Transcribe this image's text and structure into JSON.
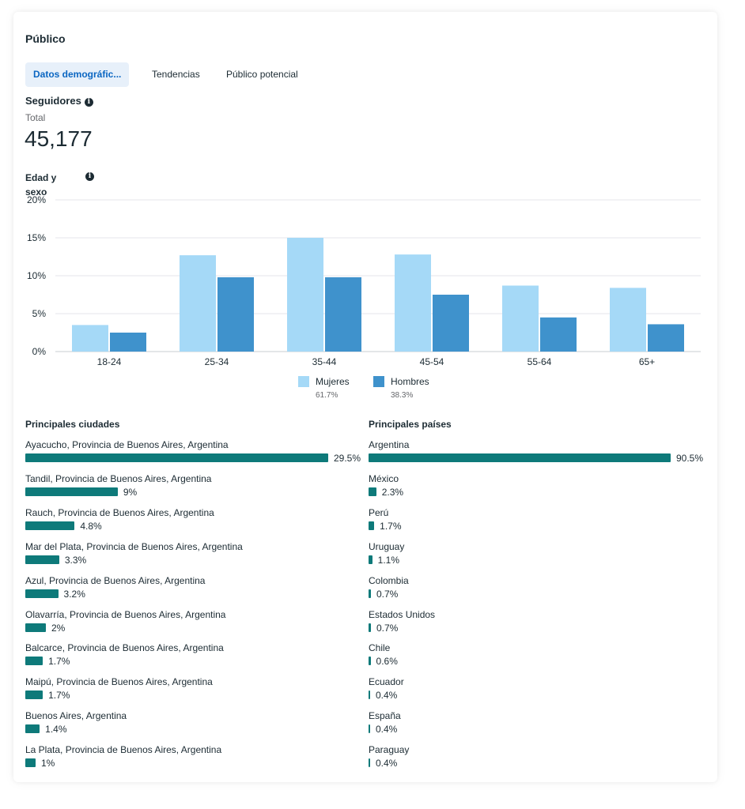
{
  "header": {
    "title": "Público"
  },
  "tabs": [
    {
      "label": "Datos demográfic...",
      "active": true
    },
    {
      "label": "Tendencias",
      "active": false
    },
    {
      "label": "Público potencial",
      "active": false
    }
  ],
  "followers": {
    "heading": "Seguidores",
    "total_label": "Total",
    "total_value": "45,177"
  },
  "chart_data": {
    "type": "bar",
    "title": "Edad y sexo",
    "categories": [
      "18-24",
      "25-34",
      "35-44",
      "45-54",
      "55-64",
      "65+"
    ],
    "series": [
      {
        "name": "Mujeres",
        "color": "#a5d9f7",
        "share": "61.7%",
        "values": [
          3.5,
          12.7,
          15.0,
          12.8,
          8.7,
          8.4
        ]
      },
      {
        "name": "Hombres",
        "color": "#3f92cc",
        "share": "38.3%",
        "values": [
          2.5,
          9.8,
          9.8,
          7.5,
          4.5,
          3.6
        ]
      }
    ],
    "yticks": [
      "0%",
      "5%",
      "10%",
      "15%",
      "20%"
    ],
    "ylim": [
      0,
      20
    ],
    "grid": true,
    "legend": "bottom-center"
  },
  "cities": {
    "title": "Principales ciudades",
    "items": [
      {
        "name": "Ayacucho, Provincia de Buenos Aires, Argentina",
        "pct": "29.5%",
        "value": 29.5
      },
      {
        "name": "Tandil, Provincia de Buenos Aires, Argentina",
        "pct": "9%",
        "value": 9
      },
      {
        "name": "Rauch, Provincia de Buenos Aires, Argentina",
        "pct": "4.8%",
        "value": 4.8
      },
      {
        "name": "Mar del Plata, Provincia de Buenos Aires, Argentina",
        "pct": "3.3%",
        "value": 3.3
      },
      {
        "name": "Azul, Provincia de Buenos Aires, Argentina",
        "pct": "3.2%",
        "value": 3.2
      },
      {
        "name": "Olavarría, Provincia de Buenos Aires, Argentina",
        "pct": "2%",
        "value": 2
      },
      {
        "name": "Balcarce, Provincia de Buenos Aires, Argentina",
        "pct": "1.7%",
        "value": 1.7
      },
      {
        "name": "Maipú, Provincia de Buenos Aires, Argentina",
        "pct": "1.7%",
        "value": 1.7
      },
      {
        "name": "Buenos Aires, Argentina",
        "pct": "1.4%",
        "value": 1.4
      },
      {
        "name": "La Plata, Provincia de Buenos Aires, Argentina",
        "pct": "1%",
        "value": 1
      }
    ]
  },
  "countries": {
    "title": "Principales países",
    "items": [
      {
        "name": "Argentina",
        "pct": "90.5%",
        "value": 90.5
      },
      {
        "name": "México",
        "pct": "2.3%",
        "value": 2.3
      },
      {
        "name": "Perú",
        "pct": "1.7%",
        "value": 1.7
      },
      {
        "name": "Uruguay",
        "pct": "1.1%",
        "value": 1.1
      },
      {
        "name": "Colombia",
        "pct": "0.7%",
        "value": 0.7
      },
      {
        "name": "Estados Unidos",
        "pct": "0.7%",
        "value": 0.7
      },
      {
        "name": "Chile",
        "pct": "0.6%",
        "value": 0.6
      },
      {
        "name": "Ecuador",
        "pct": "0.4%",
        "value": 0.4
      },
      {
        "name": "España",
        "pct": "0.4%",
        "value": 0.4
      },
      {
        "name": "Paraguay",
        "pct": "0.4%",
        "value": 0.4
      }
    ]
  },
  "colors": {
    "bar_list": "#0e7a7a",
    "tab_active_bg": "#e7f0fa",
    "tab_active_text": "#0a66c2"
  }
}
